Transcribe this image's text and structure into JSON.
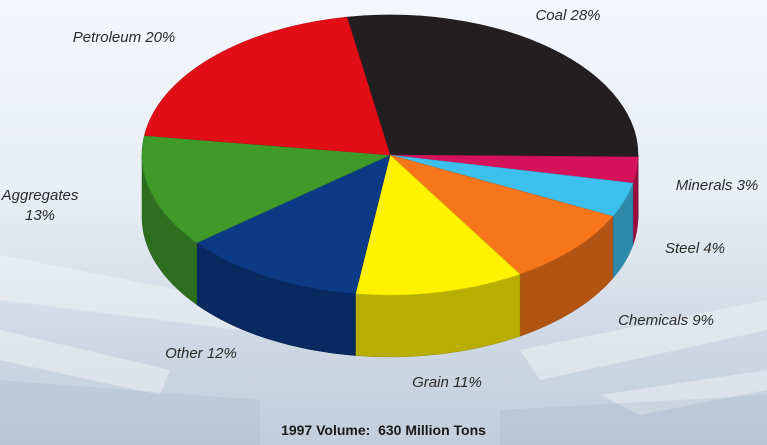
{
  "chart_data": {
    "type": "pie",
    "style": "3d",
    "title": "",
    "slices": [
      {
        "label": "Coal",
        "value": 28,
        "label_text": "Coal 28%",
        "color": "#231f20"
      },
      {
        "label": "Minerals",
        "value": 3,
        "label_text": "Minerals 3%",
        "color": "#d6135a"
      },
      {
        "label": "Steel",
        "value": 4,
        "label_text": "Steel 4%",
        "color": "#3ec0ee"
      },
      {
        "label": "Chemicals",
        "value": 9,
        "label_text": "Chemicals 9%",
        "color": "#f7751b"
      },
      {
        "label": "Grain",
        "value": 11,
        "label_text": "Grain 11%",
        "color": "#fff200"
      },
      {
        "label": "Other",
        "value": 12,
        "label_text": "Other 12%",
        "color": "#0d3a85"
      },
      {
        "label": "Aggregates",
        "value": 13,
        "label_text": [
          "Aggregates",
          "13%"
        ],
        "color": "#3f9a2a"
      },
      {
        "label": "Petroleum",
        "value": 20,
        "label_text": "Petroleum 20%",
        "color": "#e10e17"
      }
    ]
  },
  "footer": {
    "volume_label": "1997 Volume:  630 Million Tons"
  }
}
